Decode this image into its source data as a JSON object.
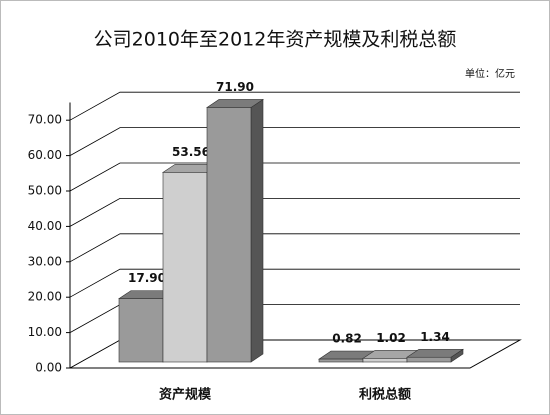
{
  "chart_data": {
    "type": "bar3d",
    "title": "公司2010年至2012年资产规模及利税总额",
    "unit": "单位：亿元",
    "categories": [
      "资产规模",
      "利税总额"
    ],
    "series": [
      {
        "color": "#9a9a9a",
        "values": [
          17.9,
          0.82
        ],
        "value_labels": [
          "17.90",
          "0.82"
        ]
      },
      {
        "color": "#cfcfcf",
        "values": [
          53.56,
          1.02
        ],
        "value_labels": [
          "53.56",
          "1.02"
        ]
      },
      {
        "color": "#9a9a9a",
        "values": [
          71.9,
          1.34
        ],
        "value_labels": [
          "71.90",
          "1.34"
        ]
      }
    ],
    "ylim": [
      0,
      75
    ],
    "yticks": [
      {
        "value": 0,
        "label": "0.00"
      },
      {
        "value": 10,
        "label": "10.00"
      },
      {
        "value": 20,
        "label": "20.00"
      },
      {
        "value": 30,
        "label": "30.00"
      },
      {
        "value": 40,
        "label": "40.00"
      },
      {
        "value": 50,
        "label": "50.00"
      },
      {
        "value": 60,
        "label": "60.00"
      },
      {
        "value": 70,
        "label": "70.00"
      }
    ],
    "grid": true
  }
}
